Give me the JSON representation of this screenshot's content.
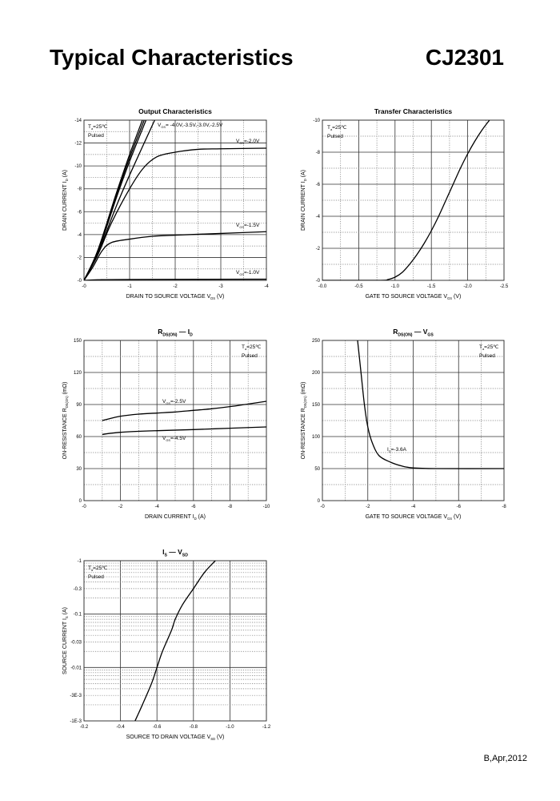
{
  "header": {
    "title": "Typical Characteristics",
    "part_number": "CJ2301"
  },
  "footer": {
    "revision": "B,Apr,2012"
  },
  "chart_data": [
    {
      "type": "line",
      "title": [
        {
          "text": "Output Characteristics"
        }
      ],
      "xlabel": [
        {
          "text": "DRAIN TO SOURCE VOLTAGE   V"
        },
        {
          "text": "DS",
          "sub": true
        },
        {
          "text": "   (V)"
        }
      ],
      "ylabel": [
        {
          "text": "DRAIN CURRENT   I"
        },
        {
          "text": "D",
          "sub": true
        },
        {
          "text": "   (A)"
        }
      ],
      "xlim": [
        0,
        4
      ],
      "ylim": [
        0,
        14
      ],
      "grid": {
        "x_major": 1,
        "x_minor": 0.5,
        "y_major": 2,
        "y_minor": 1
      },
      "xticks": [
        {
          "value": 0,
          "label": "-0"
        },
        {
          "value": 1,
          "label": "-1"
        },
        {
          "value": 2,
          "label": "-2"
        },
        {
          "value": 3,
          "label": "-3"
        },
        {
          "value": 4,
          "label": "-4"
        }
      ],
      "yticks": [
        {
          "value": 0,
          "label": "-0"
        },
        {
          "value": 2,
          "label": "-2"
        },
        {
          "value": 4,
          "label": "-4"
        },
        {
          "value": 6,
          "label": "-6"
        },
        {
          "value": 8,
          "label": "-8"
        },
        {
          "value": 10,
          "label": "-10"
        },
        {
          "value": 12,
          "label": "-12"
        },
        {
          "value": 14,
          "label": "-14"
        }
      ],
      "annotations": [
        [
          {
            "text": "T"
          },
          {
            "text": "a",
            "sub": true
          },
          {
            "text": "=25℃"
          }
        ],
        [
          {
            "text": "Pulsed"
          }
        ],
        [
          {
            "text": "V"
          },
          {
            "text": "GS",
            "sub": true
          },
          {
            "text": "= -4.0V,-3.5V,-3.0V,-2.5V"
          }
        ],
        [
          {
            "text": "V"
          },
          {
            "text": "GS",
            "sub": true
          },
          {
            "text": "=-2.0V"
          }
        ],
        [
          {
            "text": "V"
          },
          {
            "text": "GS",
            "sub": true
          },
          {
            "text": "=-1.5V"
          }
        ],
        [
          {
            "text": "V"
          },
          {
            "text": "GS",
            "sub": true
          },
          {
            "text": "=-1.0V"
          }
        ]
      ],
      "series": [
        {
          "name": "VGS=-4.0V",
          "x": [
            0,
            0.3,
            0.7,
            1.0,
            1.28
          ],
          "y": [
            0,
            2.6,
            7.5,
            11,
            14
          ]
        },
        {
          "name": "VGS=-3.5V",
          "x": [
            0,
            0.3,
            0.7,
            1.0,
            1.32
          ],
          "y": [
            0,
            2.5,
            7.3,
            10.7,
            14
          ]
        },
        {
          "name": "VGS=-3.0V",
          "x": [
            0,
            0.3,
            0.7,
            1.0,
            1.36
          ],
          "y": [
            0,
            2.4,
            7.1,
            10.4,
            14
          ]
        },
        {
          "name": "VGS=-2.5V",
          "x": [
            0,
            0.3,
            0.7,
            1.0,
            1.55
          ],
          "y": [
            0,
            2.3,
            6.4,
            9.2,
            14
          ]
        },
        {
          "name": "VGS=-2.0V",
          "x": [
            0,
            0.3,
            0.6,
            1.0,
            1.3,
            1.6,
            2.0,
            2.5,
            3.0,
            4.0
          ],
          "y": [
            0,
            2.2,
            5.0,
            8.0,
            9.8,
            10.8,
            11.2,
            11.45,
            11.5,
            11.55
          ]
        },
        {
          "name": "VGS=-1.5V",
          "x": [
            0,
            0.2,
            0.4,
            0.6,
            1.0,
            1.5,
            2.0,
            3.0,
            4.0
          ],
          "y": [
            0,
            1.2,
            2.6,
            3.3,
            3.6,
            3.85,
            3.95,
            4.1,
            4.25
          ]
        },
        {
          "name": "VGS=-1.0V",
          "x": [
            0,
            0.3,
            1.0,
            4.0
          ],
          "y": [
            0,
            0.05,
            0.08,
            0.1
          ]
        }
      ]
    },
    {
      "type": "line",
      "title": [
        {
          "text": "Transfer Characteristics"
        }
      ],
      "xlabel": [
        {
          "text": "GATE TO SOURCE VOLTAGE   V"
        },
        {
          "text": "GS",
          "sub": true
        },
        {
          "text": "   (V)"
        }
      ],
      "ylabel": [
        {
          "text": "DRAIN CURRENT   I"
        },
        {
          "text": "D",
          "sub": true
        },
        {
          "text": "   (A)"
        }
      ],
      "xlim": [
        0,
        2.5
      ],
      "ylim": [
        0,
        10
      ],
      "grid": {
        "x_major": 0.5,
        "x_minor": 0.25,
        "y_major": 2,
        "y_minor": 1
      },
      "xticks": [
        {
          "value": 0,
          "label": "-0.0"
        },
        {
          "value": 0.5,
          "label": "-0.5"
        },
        {
          "value": 1,
          "label": "-1.0"
        },
        {
          "value": 1.5,
          "label": "-1.5"
        },
        {
          "value": 2,
          "label": "-2.0"
        },
        {
          "value": 2.5,
          "label": "-2.5"
        }
      ],
      "yticks": [
        {
          "value": 0,
          "label": "-0"
        },
        {
          "value": 2,
          "label": "-2"
        },
        {
          "value": 4,
          "label": "-4"
        },
        {
          "value": 6,
          "label": "-6"
        },
        {
          "value": 8,
          "label": "-8"
        },
        {
          "value": 10,
          "label": "-10"
        }
      ],
      "annotations": [
        [
          {
            "text": "T"
          },
          {
            "text": "a",
            "sub": true
          },
          {
            "text": "=25℃"
          }
        ],
        [
          {
            "text": "Pulsed"
          }
        ]
      ],
      "series": [
        {
          "name": "ID",
          "x": [
            0,
            0.8,
            0.9,
            1.0,
            1.1,
            1.2,
            1.3,
            1.4,
            1.5,
            1.6,
            1.7,
            1.8,
            1.9,
            2.0,
            2.1,
            2.2,
            2.3
          ],
          "y": [
            0,
            0,
            0.05,
            0.2,
            0.5,
            1.0,
            1.6,
            2.3,
            3.1,
            4.0,
            5.0,
            6.0,
            7.0,
            7.9,
            8.7,
            9.4,
            10
          ]
        }
      ]
    },
    {
      "type": "line",
      "title": [
        {
          "text": "R"
        },
        {
          "text": "DS(ON)",
          "sub": true
        },
        {
          "text": "   —   I"
        },
        {
          "text": "D",
          "sub": true
        }
      ],
      "xlabel": [
        {
          "text": "DRAIN CURRENT   I"
        },
        {
          "text": "D",
          "sub": true
        },
        {
          "text": "   (A)"
        }
      ],
      "ylabel": [
        {
          "text": "ON-RESISTANCE   R"
        },
        {
          "text": "DS(ON)",
          "sub": true
        },
        {
          "text": "   (mΩ)"
        }
      ],
      "xlim": [
        0,
        10
      ],
      "ylim": [
        0,
        150
      ],
      "grid": {
        "x_major": 2,
        "x_minor": 1,
        "y_major": 30,
        "y_minor": 15
      },
      "xticks": [
        {
          "value": 0,
          "label": "-0"
        },
        {
          "value": 2,
          "label": "-2"
        },
        {
          "value": 4,
          "label": "-4"
        },
        {
          "value": 6,
          "label": "-6"
        },
        {
          "value": 8,
          "label": "-8"
        },
        {
          "value": 10,
          "label": "-10"
        }
      ],
      "yticks": [
        {
          "value": 0,
          "label": "0"
        },
        {
          "value": 30,
          "label": "30"
        },
        {
          "value": 60,
          "label": "60"
        },
        {
          "value": 90,
          "label": "90"
        },
        {
          "value": 120,
          "label": "120"
        },
        {
          "value": 150,
          "label": "150"
        }
      ],
      "annotations": [
        [
          {
            "text": "T"
          },
          {
            "text": "a",
            "sub": true
          },
          {
            "text": "=25℃"
          }
        ],
        [
          {
            "text": "Pulsed"
          }
        ],
        [
          {
            "text": "V"
          },
          {
            "text": "GS",
            "sub": true
          },
          {
            "text": "=-2.5V"
          }
        ],
        [
          {
            "text": "V"
          },
          {
            "text": "GS",
            "sub": true
          },
          {
            "text": "=-4.5V"
          }
        ]
      ],
      "series": [
        {
          "name": "VGS=-2.5V",
          "x": [
            1,
            2,
            3,
            4,
            5,
            6,
            7,
            8,
            9,
            10
          ],
          "y": [
            75,
            79,
            81,
            82,
            83,
            84.5,
            86,
            88,
            90.5,
            93
          ]
        },
        {
          "name": "VGS=-4.5V",
          "x": [
            1,
            2,
            4,
            6,
            8,
            10
          ],
          "y": [
            62,
            64,
            65.5,
            66.5,
            67.8,
            69
          ]
        }
      ]
    },
    {
      "type": "line",
      "title": [
        {
          "text": "R"
        },
        {
          "text": "DS(ON)",
          "sub": true
        },
        {
          "text": "   —   V"
        },
        {
          "text": "GS",
          "sub": true
        }
      ],
      "xlabel": [
        {
          "text": "GATE TO SOURCE VOLTAGE   V"
        },
        {
          "text": "GS",
          "sub": true
        },
        {
          "text": "   (V)"
        }
      ],
      "ylabel": [
        {
          "text": "ON-RESISTANCE   R"
        },
        {
          "text": "DS(ON)",
          "sub": true
        },
        {
          "text": "   (mΩ)"
        }
      ],
      "xlim": [
        0,
        8
      ],
      "ylim": [
        0,
        250
      ],
      "grid": {
        "x_major": 2,
        "x_minor": 1,
        "y_major": 50,
        "y_minor": 25
      },
      "xticks": [
        {
          "value": 0,
          "label": "-0"
        },
        {
          "value": 2,
          "label": "-2"
        },
        {
          "value": 4,
          "label": "-4"
        },
        {
          "value": 6,
          "label": "-6"
        },
        {
          "value": 8,
          "label": "-8"
        }
      ],
      "yticks": [
        {
          "value": 0,
          "label": "0"
        },
        {
          "value": 50,
          "label": "50"
        },
        {
          "value": 100,
          "label": "100"
        },
        {
          "value": 150,
          "label": "150"
        },
        {
          "value": 200,
          "label": "200"
        },
        {
          "value": 250,
          "label": "250"
        }
      ],
      "annotations": [
        [
          {
            "text": "T"
          },
          {
            "text": "a",
            "sub": true
          },
          {
            "text": "=25℃"
          }
        ],
        [
          {
            "text": "Pulsed"
          }
        ],
        [
          {
            "text": "I"
          },
          {
            "text": "D",
            "sub": true
          },
          {
            "text": "=-3.6A"
          }
        ]
      ],
      "series": [
        {
          "name": "ID=-3.6A",
          "x": [
            1.55,
            1.7,
            1.85,
            2.0,
            2.2,
            2.5,
            3.0,
            3.5,
            4.0,
            5.0,
            8.0
          ],
          "y": [
            250,
            200,
            150,
            115,
            90,
            70,
            60,
            54,
            51,
            50,
            50
          ]
        }
      ]
    },
    {
      "type": "line",
      "title": [
        {
          "text": "I"
        },
        {
          "text": "S",
          "sub": true
        },
        {
          "text": "   —   V"
        },
        {
          "text": "SD",
          "sub": true
        }
      ],
      "xlabel": [
        {
          "text": "SOURCE TO DRAIN VOLTAGE   V"
        },
        {
          "text": "SD",
          "sub": true
        },
        {
          "text": "   (V)"
        }
      ],
      "ylabel": [
        {
          "text": "SOURCE CURRENT   I"
        },
        {
          "text": "S",
          "sub": true
        },
        {
          "text": "   (A)"
        }
      ],
      "xlim": [
        0.2,
        1.2
      ],
      "ylim": [
        0.001,
        1
      ],
      "y_log": true,
      "grid": {
        "x_major": 0.2,
        "y_major": "decade",
        "y_minor": "log"
      },
      "xticks": [
        {
          "value": 0.2,
          "label": "-0.2"
        },
        {
          "value": 0.4,
          "label": "-0.4"
        },
        {
          "value": 0.6,
          "label": "-0.6"
        },
        {
          "value": 0.8,
          "label": "-0.8"
        },
        {
          "value": 1.0,
          "label": "-1.0"
        },
        {
          "value": 1.2,
          "label": "-1.2"
        }
      ],
      "yticks": [
        {
          "value": 0.001,
          "label": "-1E-3"
        },
        {
          "value": 0.003,
          "label": "-3E-3"
        },
        {
          "value": 0.01,
          "label": "-0.01"
        },
        {
          "value": 0.03,
          "label": "-0.03"
        },
        {
          "value": 0.1,
          "label": "-0.1"
        },
        {
          "value": 0.3,
          "label": "-0.3"
        },
        {
          "value": 1,
          "label": "-1"
        }
      ],
      "annotations": [
        [
          {
            "text": "T"
          },
          {
            "text": "a",
            "sub": true
          },
          {
            "text": "=25℃"
          }
        ],
        [
          {
            "text": "Pulsed"
          }
        ]
      ],
      "series": [
        {
          "name": "IS",
          "x": [
            0.48,
            0.52,
            0.57,
            0.6,
            0.63,
            0.68,
            0.7,
            0.74,
            0.8,
            0.86,
            0.92
          ],
          "y": [
            0.001,
            0.002,
            0.005,
            0.01,
            0.02,
            0.05,
            0.08,
            0.15,
            0.3,
            0.6,
            1
          ]
        }
      ]
    }
  ]
}
